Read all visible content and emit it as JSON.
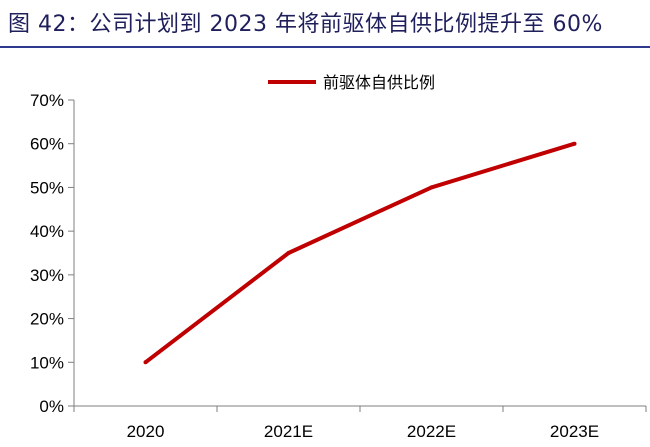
{
  "title": "图 42：公司计划到 2023 年将前驱体自供比例提升至 60%",
  "chart_data": {
    "type": "line",
    "categories": [
      "2020",
      "2021E",
      "2022E",
      "2023E"
    ],
    "series": [
      {
        "name": "前驱体自供比例",
        "values": [
          10,
          35,
          50,
          60
        ],
        "color": "#c00000"
      }
    ],
    "ylim": [
      0,
      70
    ],
    "yticks": [
      0,
      10,
      20,
      30,
      40,
      50,
      60,
      70
    ],
    "ytick_labels": [
      "0%",
      "10%",
      "20%",
      "30%",
      "40%",
      "50%",
      "60%",
      "70%"
    ],
    "xlabel": "",
    "ylabel": "",
    "grid": false,
    "legend_position": "top-center"
  }
}
